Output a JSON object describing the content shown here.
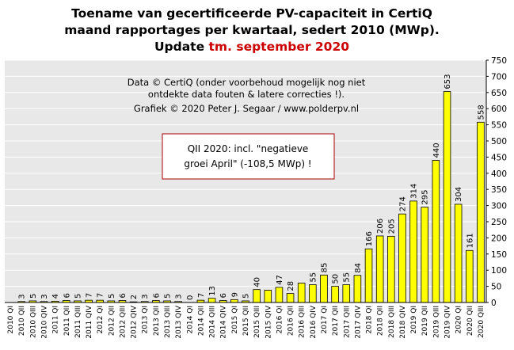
{
  "title": {
    "line1": "Toename van gecertificeerde PV-capaciteit  in CertiQ",
    "line2": "maand rapportages per kwartaal, sedert 2010 (MWp).",
    "line3_prefix": "Update ",
    "line3_highlight": "tm. september 2020"
  },
  "credit": {
    "line1": "Data © CertiQ (onder voorbehoud mogelijk  nog niet",
    "line2": "ontdekte data fouten & latere correcties !).",
    "line3": "Grafiek  © 2020 Peter J. Segaar / www.polderpv.nl"
  },
  "note": {
    "line1": "QII 2020: incl. \"negatieve",
    "line2": "groei April\"  (-108,5 MWp) !"
  },
  "colors": {
    "plot_background": "#e8e8e8",
    "bar_fill": "#ffff00",
    "bar_stroke": "#000000",
    "highlight_label": "#cc0000",
    "title_highlight": "#cc0000",
    "note_border": "#aa0000"
  },
  "chart_data": {
    "type": "bar",
    "title": "Toename van gecertificeerde PV-capaciteit in CertiQ maand rapportages per kwartaal, sedert 2010 (MWp). Update tm. september 2020",
    "xlabel": "",
    "ylabel": "",
    "ylim": [
      0,
      750
    ],
    "y_ticks": [
      0,
      50,
      100,
      150,
      200,
      250,
      300,
      350,
      400,
      450,
      500,
      550,
      600,
      650,
      700,
      750
    ],
    "y_axis_side": "right",
    "grid": true,
    "categories": [
      "2010 QI",
      "2010 QII",
      "2010 QIII",
      "2010 QIV",
      "2011 QI",
      "2011 QII",
      "2011 QIII",
      "2011 QIV",
      "2012 QI",
      "2012 QII",
      "2012 QIII",
      "2012 QIV",
      "2013 QI",
      "2013 QII",
      "2013 QIII",
      "2013 QIV",
      "2014 QI",
      "2014 QII",
      "2014 QIII",
      "2014 QIV",
      "2015 QI",
      "2015 QII",
      "2015 QIII",
      "2015 QIV",
      "2016 QI",
      "2016 QII",
      "2016 QIII",
      "2016 QIV",
      "2017 QI",
      "2017 QII",
      "2017 QIII",
      "2017 QIV",
      "2018 QI",
      "2018 QII",
      "2018 QIII",
      "2018 QIV",
      "2019 QI",
      "2019 QII",
      "2019 QIII",
      "2019 QIV",
      "2020 QI",
      "2020 QII",
      "2020 QIII"
    ],
    "values": [
      null,
      3,
      5,
      3,
      4,
      6,
      5,
      7,
      7,
      5,
      6,
      2,
      3,
      6,
      5,
      3,
      0,
      7,
      13,
      6,
      9,
      5,
      40,
      38,
      47,
      28,
      60,
      55,
      85,
      50,
      55,
      84,
      166,
      206,
      205,
      274,
      314,
      295,
      440,
      653,
      304,
      161,
      558
    ],
    "labels": [
      "",
      "3",
      "5",
      "3",
      "4",
      "6",
      "5",
      "7",
      "7",
      "5",
      "6",
      "2",
      "3",
      "6",
      "5",
      "3",
      "0",
      "7",
      "13",
      "6",
      "9",
      "5",
      "40",
      "",
      "47",
      "28",
      "",
      "55",
      "85",
      "50",
      "55",
      "84",
      "166",
      "206",
      "205",
      "274",
      "314",
      "295",
      "440",
      "653",
      "304",
      "161",
      "558"
    ],
    "highlight_index": 39
  }
}
